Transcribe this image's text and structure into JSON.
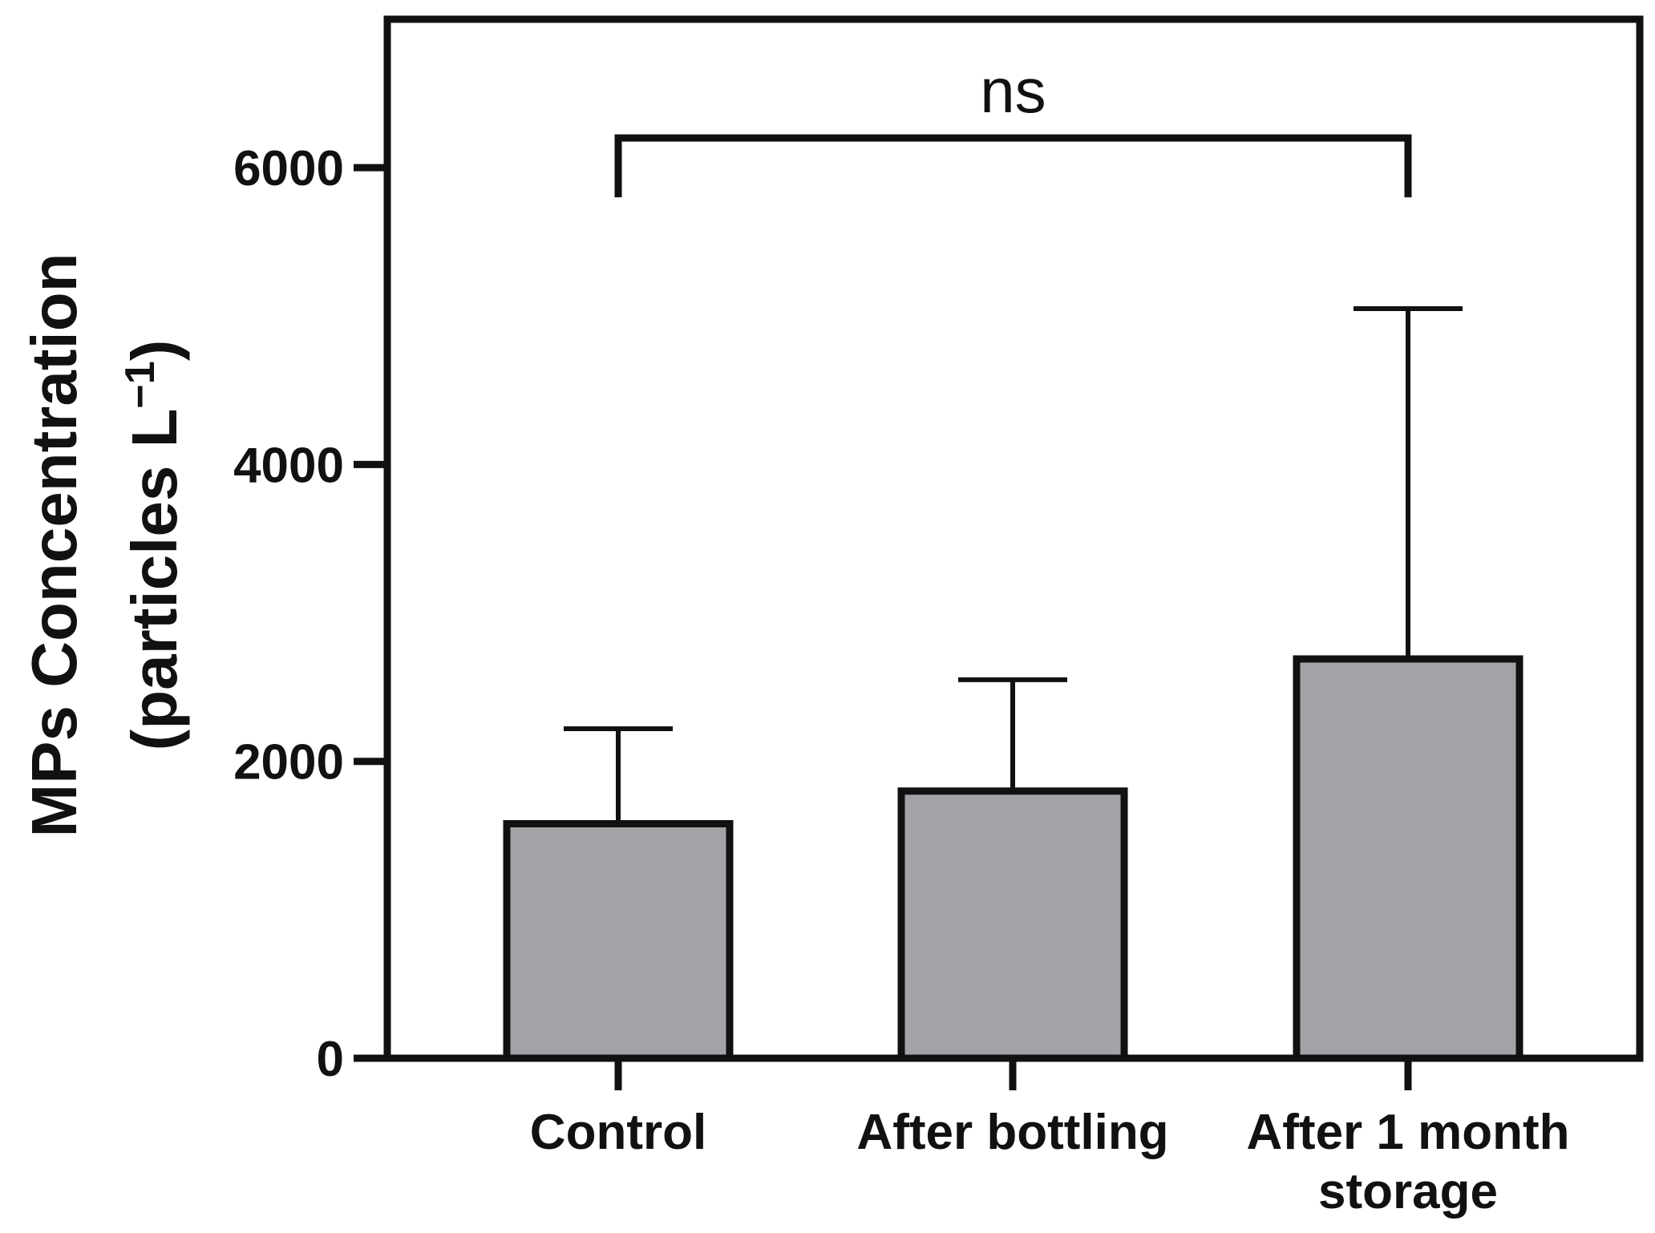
{
  "chart_data": {
    "type": "bar",
    "title": "",
    "xlabel": "",
    "ylabel_line1": "MPs Concentration",
    "ylabel_line2": "(particles L",
    "ylabel_sup": "−1",
    "ylabel_close": ")",
    "ylim": [
      0,
      7000
    ],
    "yticks": [
      0,
      2000,
      4000,
      6000
    ],
    "categories": [
      [
        "Control"
      ],
      [
        "After bottling"
      ],
      [
        "After 1 month",
        "storage"
      ]
    ],
    "values": [
      1580,
      1800,
      2690
    ],
    "error_upper": [
      2220,
      2550,
      5050
    ],
    "bar_color": "#a3a2a6",
    "significance": {
      "label": "ns",
      "from_category": 0,
      "to_category": 2,
      "bracket_y": 6200,
      "bracket_drop_y": 5800
    }
  }
}
